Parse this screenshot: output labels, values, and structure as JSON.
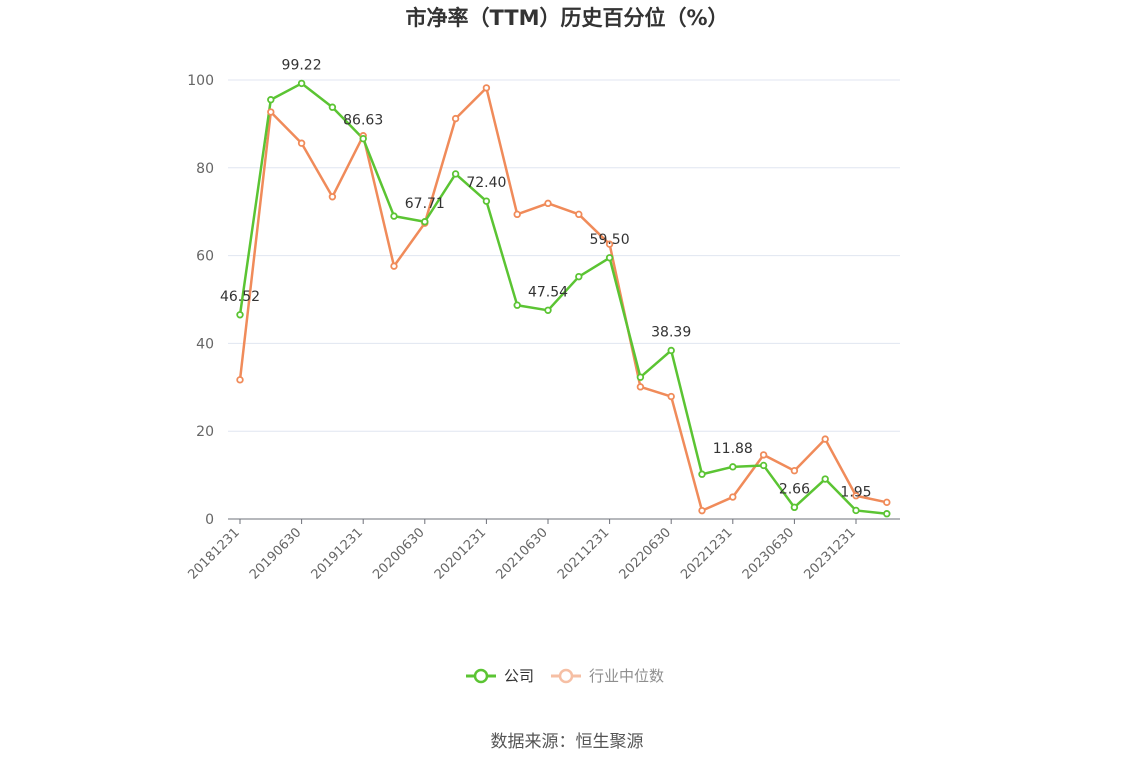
{
  "chart_data": {
    "type": "line",
    "title": "市净率（TTM）历史百分位（%）",
    "source": "数据来源：恒生聚源",
    "xlabel": "",
    "ylabel": "",
    "ylim": [
      0,
      100
    ],
    "yticks": [
      "0",
      "20",
      "40",
      "60",
      "80",
      "100"
    ],
    "x": [
      "20181231",
      "20190331",
      "20190630",
      "20190930",
      "20191231",
      "20200331",
      "20200630",
      "20200930",
      "20201231",
      "20210331",
      "20210630",
      "20210930",
      "20211231",
      "20220331",
      "20220630",
      "20220930",
      "20221231",
      "20230331",
      "20230630",
      "20230930",
      "20231231",
      "20240331"
    ],
    "xtick_labels": [
      "20181231",
      "20190630",
      "20191231",
      "20200630",
      "20201231",
      "20210630",
      "20211231",
      "20220630",
      "20221231",
      "20230630",
      "20231231"
    ],
    "grid": true,
    "legend_position": "bottom",
    "series": [
      {
        "name": "公司",
        "color": "#5bc433",
        "values": [
          46.52,
          95.5,
          99.22,
          93.8,
          86.63,
          69.0,
          67.71,
          78.6,
          72.4,
          48.7,
          47.54,
          55.2,
          59.5,
          32.3,
          38.39,
          10.2,
          11.88,
          12.2,
          2.66,
          9.1,
          1.95,
          1.2
        ],
        "labels": [
          {
            "index": 0,
            "text": "46.52"
          },
          {
            "index": 2,
            "text": "99.22"
          },
          {
            "index": 4,
            "text": "86.63"
          },
          {
            "index": 6,
            "text": "67.71"
          },
          {
            "index": 8,
            "text": "72.40"
          },
          {
            "index": 10,
            "text": "47.54"
          },
          {
            "index": 12,
            "text": "59.50"
          },
          {
            "index": 14,
            "text": "38.39"
          },
          {
            "index": 16,
            "text": "11.88"
          },
          {
            "index": 18,
            "text": "2.66"
          },
          {
            "index": 20,
            "text": "1.95"
          }
        ]
      },
      {
        "name": "行业中位数",
        "color": "#f08b5a",
        "values": [
          31.7,
          92.7,
          85.6,
          73.4,
          87.3,
          57.6,
          67.4,
          91.2,
          98.2,
          69.4,
          71.9,
          69.4,
          62.6,
          30.1,
          27.9,
          1.9,
          5.0,
          14.6,
          11.0,
          18.2,
          5.3,
          3.8
        ]
      }
    ]
  }
}
